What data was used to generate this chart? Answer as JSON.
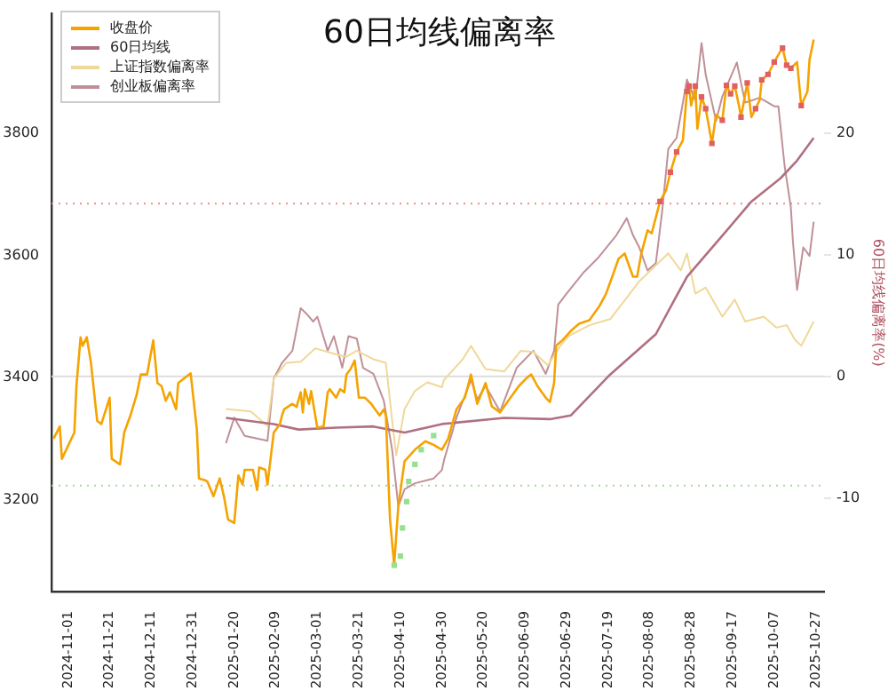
{
  "chart_data": {
    "type": "line",
    "title": "60日均线偏离率",
    "y2label": "60日均线偏离率(%)",
    "legend": "top left",
    "xlim": [
      "2024-10-24",
      "2025-10-31"
    ],
    "xticks": [
      "2024-11-01",
      "2024-11-21",
      "2024-12-11",
      "2024-12-31",
      "2025-01-20",
      "2025-02-09",
      "2025-03-01",
      "2025-03-21",
      "2025-04-10",
      "2025-04-30",
      "2025-05-20",
      "2025-06-09",
      "2025-06-29",
      "2025-07-19",
      "2025-08-08",
      "2025-08-28",
      "2025-09-17",
      "2025-10-07",
      "2025-10-27"
    ],
    "ylim": [
      3050,
      3995
    ],
    "yticks": [
      3200,
      3400,
      3600,
      3800
    ],
    "y2lim": [
      -17.7,
      29.8
    ],
    "y2ticks": [
      -10,
      0,
      10,
      20
    ],
    "ref_lines": [
      {
        "axis": "y2",
        "value": 0,
        "color": "#dddddd",
        "line_style": "solid"
      },
      {
        "axis": "y2",
        "value": 14.2,
        "color": "#e89090",
        "line_style": "dotted"
      },
      {
        "axis": "y2",
        "value": -9.0,
        "color": "#a8d8a0",
        "line_style": "dotted"
      }
    ],
    "series": [
      {
        "name": "收盘价",
        "color": "#f5a300",
        "x": [
          "2024-10-25",
          "2024-10-28",
          "2024-10-29",
          "2024-11-04",
          "2024-11-05",
          "2024-11-07",
          "2024-11-08",
          "2024-11-10",
          "2024-11-12",
          "2024-11-15",
          "2024-11-17",
          "2024-11-21",
          "2024-11-22",
          "2024-11-26",
          "2024-11-28",
          "2024-12-01",
          "2024-12-04",
          "2024-12-06",
          "2024-12-09",
          "2024-12-12",
          "2024-12-14",
          "2024-12-16",
          "2024-12-18",
          "2024-12-20",
          "2024-12-23",
          "2024-12-24",
          "2024-12-30",
          "2025-01-02",
          "2025-01-03",
          "2025-01-06",
          "2025-01-07",
          "2025-01-10",
          "2025-01-13",
          "2025-01-15",
          "2025-01-17",
          "2025-01-20",
          "2025-01-22",
          "2025-01-24",
          "2025-01-25",
          "2025-01-29",
          "2025-01-31",
          "2025-02-01",
          "2025-02-04",
          "2025-02-05",
          "2025-02-08",
          "2025-02-11",
          "2025-02-12",
          "2025-02-13",
          "2025-02-17",
          "2025-02-19",
          "2025-02-21",
          "2025-02-22",
          "2025-02-23",
          "2025-02-25",
          "2025-02-26",
          "2025-03-01",
          "2025-03-04",
          "2025-03-06",
          "2025-03-07",
          "2025-03-10",
          "2025-03-12",
          "2025-03-14",
          "2025-03-15",
          "2025-03-17",
          "2025-03-19",
          "2025-03-21",
          "2025-03-24",
          "2025-03-27",
          "2025-03-28",
          "2025-03-31",
          "2025-04-02",
          "2025-04-03",
          "2025-04-05",
          "2025-04-07",
          "2025-04-09",
          "2025-04-12",
          "2025-04-17",
          "2025-04-22",
          "2025-04-26",
          "2025-04-30",
          "2025-05-03",
          "2025-05-07",
          "2025-05-11",
          "2025-05-14",
          "2025-05-17",
          "2025-05-21",
          "2025-05-24",
          "2025-05-28",
          "2025-06-02",
          "2025-06-06",
          "2025-06-10",
          "2025-06-12",
          "2025-06-15",
          "2025-06-19",
          "2025-06-21",
          "2025-06-23",
          "2025-06-24",
          "2025-06-27",
          "2025-07-01",
          "2025-07-05",
          "2025-07-10",
          "2025-07-15",
          "2025-07-18",
          "2025-07-21",
          "2025-07-24",
          "2025-07-27",
          "2025-07-31",
          "2025-08-02",
          "2025-08-04",
          "2025-08-07",
          "2025-08-09",
          "2025-08-13",
          "2025-08-16",
          "2025-08-18",
          "2025-08-21",
          "2025-08-24",
          "2025-08-26",
          "2025-08-27",
          "2025-08-28",
          "2025-08-30",
          "2025-08-31",
          "2025-09-02",
          "2025-09-04",
          "2025-09-07",
          "2025-09-09",
          "2025-09-12",
          "2025-09-14",
          "2025-09-16",
          "2025-09-18",
          "2025-09-20",
          "2025-09-21",
          "2025-09-24",
          "2025-09-26",
          "2025-09-28",
          "2025-09-30",
          "2025-10-01",
          "2025-10-04",
          "2025-10-07",
          "2025-10-10",
          "2025-10-11",
          "2025-10-13",
          "2025-10-15",
          "2025-10-18",
          "2025-10-20",
          "2025-10-23",
          "2025-10-24",
          "2025-10-26"
        ],
        "values": [
          3300,
          3320,
          3267,
          3310,
          3386,
          3466,
          3452,
          3466,
          3424,
          3329,
          3324,
          3367,
          3267,
          3258,
          3310,
          3338,
          3372,
          3405,
          3405,
          3461,
          3391,
          3386,
          3362,
          3376,
          3348,
          3391,
          3407,
          3315,
          3235,
          3232,
          3230,
          3206,
          3235,
          3206,
          3168,
          3162,
          3240,
          3225,
          3249,
          3249,
          3216,
          3253,
          3249,
          3225,
          3310,
          3324,
          3338,
          3348,
          3357,
          3352,
          3376,
          3343,
          3381,
          3357,
          3378,
          3318,
          3320,
          3376,
          3381,
          3367,
          3381,
          3376,
          3405,
          3414,
          3428,
          3367,
          3367,
          3357,
          3352,
          3338,
          3348,
          3338,
          3168,
          3093,
          3190,
          3263,
          3282,
          3296,
          3290,
          3282,
          3300,
          3348,
          3367,
          3405,
          3357,
          3391,
          3353,
          3343,
          3367,
          3386,
          3400,
          3405,
          3386,
          3367,
          3360,
          3391,
          3452,
          3461,
          3476,
          3488,
          3494,
          3518,
          3537,
          3565,
          3594,
          3603,
          3565,
          3565,
          3603,
          3641,
          3636,
          3688,
          3707,
          3736,
          3769,
          3788,
          3868,
          3877,
          3845,
          3877,
          3807,
          3859,
          3840,
          3783,
          3830,
          3821,
          3878,
          3864,
          3877,
          3845,
          3826,
          3882,
          3826,
          3840,
          3854,
          3887,
          3896,
          3916,
          3934,
          3939,
          3911,
          3906,
          3916,
          3845,
          3868,
          3920,
          3953
        ]
      },
      {
        "name": "60日均线",
        "color": "#b07080",
        "x": [
          "2025-01-16",
          "2025-02-08",
          "2025-02-20",
          "2025-03-10",
          "2025-03-28",
          "2025-04-12",
          "2025-04-30",
          "2025-05-30",
          "2025-06-21",
          "2025-07-01",
          "2025-07-20",
          "2025-08-11",
          "2025-08-26",
          "2025-09-12",
          "2025-09-26",
          "2025-10-10",
          "2025-10-18",
          "2025-10-26"
        ],
        "values": [
          3334,
          3324,
          3315,
          3318,
          3320,
          3310,
          3324,
          3334,
          3332,
          3338,
          3405,
          3471,
          3565,
          3632,
          3688,
          3726,
          3755,
          3792
        ]
      },
      {
        "name": "上证指数偏离率",
        "color": "#f0d898",
        "axis": "y2",
        "x": [
          "2025-01-16",
          "2025-01-28",
          "2025-02-05",
          "2025-02-08",
          "2025-02-14",
          "2025-02-21",
          "2025-02-28",
          "2025-03-10",
          "2025-03-15",
          "2025-03-20",
          "2025-03-28",
          "2025-04-03",
          "2025-04-06",
          "2025-04-08",
          "2025-04-12",
          "2025-04-17",
          "2025-04-23",
          "2025-04-30",
          "2025-05-01",
          "2025-05-10",
          "2025-05-14",
          "2025-05-21",
          "2025-05-30",
          "2025-06-07",
          "2025-06-13",
          "2025-06-20",
          "2025-06-26",
          "2025-06-30",
          "2025-07-10",
          "2025-07-20",
          "2025-08-03",
          "2025-08-17",
          "2025-08-23",
          "2025-08-26",
          "2025-08-30",
          "2025-09-04",
          "2025-09-12",
          "2025-09-18",
          "2025-09-23",
          "2025-10-02",
          "2025-10-08",
          "2025-10-13",
          "2025-10-17",
          "2025-10-20",
          "2025-10-23",
          "2025-10-26"
        ],
        "values": [
          -2.7,
          -2.9,
          -4.1,
          -0.2,
          1.1,
          1.2,
          2.3,
          1.8,
          1.6,
          2.1,
          1.4,
          1.1,
          -3.6,
          -6.5,
          -2.7,
          -1.2,
          -0.5,
          -0.9,
          -0.3,
          1.4,
          2.5,
          0.6,
          0.4,
          2.1,
          2.0,
          0.9,
          2.5,
          3.3,
          4.2,
          4.7,
          7.8,
          10.1,
          8.7,
          10.1,
          6.8,
          7.3,
          4.9,
          6.3,
          4.5,
          4.9,
          4.0,
          4.2,
          3.0,
          2.5,
          3.5,
          4.5
        ]
      },
      {
        "name": "创业板偏离率",
        "color": "#c09098",
        "axis": "y2",
        "x": [
          "2025-01-16",
          "2025-01-20",
          "2025-01-25",
          "2025-02-05",
          "2025-02-08",
          "2025-02-12",
          "2025-02-17",
          "2025-02-21",
          "2025-02-24",
          "2025-02-27",
          "2025-03-01",
          "2025-03-06",
          "2025-03-09",
          "2025-03-13",
          "2025-03-16",
          "2025-03-20",
          "2025-03-23",
          "2025-03-28",
          "2025-04-02",
          "2025-04-06",
          "2025-04-09",
          "2025-04-12",
          "2025-04-17",
          "2025-04-26",
          "2025-04-30",
          "2025-05-01",
          "2025-05-07",
          "2025-05-14",
          "2025-05-17",
          "2025-05-21",
          "2025-05-28",
          "2025-06-05",
          "2025-06-13",
          "2025-06-19",
          "2025-06-23",
          "2025-06-25",
          "2025-06-29",
          "2025-07-07",
          "2025-07-14",
          "2025-07-23",
          "2025-07-28",
          "2025-07-31",
          "2025-08-03",
          "2025-08-07",
          "2025-08-11",
          "2025-08-14",
          "2025-08-17",
          "2025-08-21",
          "2025-08-26",
          "2025-08-30",
          "2025-09-02",
          "2025-09-04",
          "2025-09-09",
          "2025-09-12",
          "2025-09-19",
          "2025-09-23",
          "2025-09-30",
          "2025-10-07",
          "2025-10-09",
          "2025-10-12",
          "2025-10-15",
          "2025-10-16",
          "2025-10-18",
          "2025-10-21",
          "2025-10-24",
          "2025-10-26"
        ],
        "values": [
          -5.5,
          -3.4,
          -4.9,
          -5.3,
          -0.2,
          1.1,
          2.1,
          5.6,
          5.1,
          4.5,
          4.9,
          2.1,
          3.3,
          0.7,
          3.3,
          3.1,
          0.7,
          0.2,
          -2.0,
          -6.0,
          -10.7,
          -9.3,
          -8.8,
          -8.4,
          -7.7,
          -6.9,
          -3.4,
          -0.3,
          -1.9,
          -0.8,
          -2.9,
          0.7,
          2.1,
          0.2,
          2.1,
          5.9,
          6.8,
          8.5,
          9.7,
          11.6,
          13.0,
          11.6,
          10.6,
          8.7,
          9.3,
          13.5,
          18.7,
          19.6,
          24.4,
          22.7,
          27.4,
          24.8,
          21.0,
          23.0,
          25.8,
          22.5,
          22.9,
          22.2,
          22.2,
          17.3,
          13.9,
          11.1,
          7.1,
          10.6,
          9.9,
          12.7
        ]
      },
      {
        "type": "scatter",
        "marker": "square",
        "color": "#e06060",
        "x": [
          "2025-08-13",
          "2025-08-18",
          "2025-08-21",
          "2025-08-26",
          "2025-08-27",
          "2025-08-30",
          "2025-09-02",
          "2025-09-04",
          "2025-09-07",
          "2025-09-12",
          "2025-09-14",
          "2025-09-16",
          "2025-09-18",
          "2025-09-21",
          "2025-09-24",
          "2025-09-28",
          "2025-10-01",
          "2025-10-04",
          "2025-10-07",
          "2025-10-11",
          "2025-10-13",
          "2025-10-15",
          "2025-10-20"
        ],
        "values": [
          3688,
          3736,
          3769,
          3868,
          3877,
          3877,
          3859,
          3840,
          3783,
          3821,
          3878,
          3864,
          3877,
          3826,
          3882,
          3840,
          3887,
          3896,
          3916,
          3939,
          3911,
          3906,
          3845
        ]
      },
      {
        "type": "scatter",
        "marker": "square",
        "color": "#98e090",
        "x": [
          "2025-04-07",
          "2025-04-10",
          "2025-04-11",
          "2025-04-13",
          "2025-04-14",
          "2025-04-17",
          "2025-04-20",
          "2025-04-26"
        ],
        "values": [
          3093,
          3108,
          3154,
          3197,
          3230,
          3258,
          3282,
          3305
        ]
      }
    ]
  }
}
